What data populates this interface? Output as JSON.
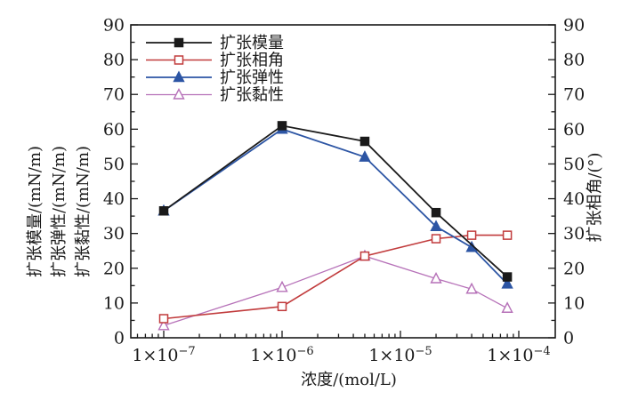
{
  "figure": {
    "background": "#ffffff",
    "ink_color": "#1a1a1a"
  },
  "chart_data": {
    "type": "line",
    "title": "",
    "x_axis": {
      "title": "浓度/(mol/L)",
      "scale": "log",
      "range": [
        5.5e-08,
        0.0002
      ],
      "ticks": [
        {
          "value": 1e-07,
          "label": "1×10⁻⁷",
          "base": "1×10",
          "exp": "−7"
        },
        {
          "value": 1e-06,
          "label": "1×10⁻⁶",
          "base": "1×10",
          "exp": "−6"
        },
        {
          "value": 1e-05,
          "label": "1×10⁻⁵",
          "base": "1×10",
          "exp": "−5"
        },
        {
          "value": 0.0001,
          "label": "1×10⁻⁴",
          "base": "1×10",
          "exp": "−4"
        }
      ]
    },
    "y_axis_left": {
      "titles": [
        "扩张模量/(mN/m)",
        "扩张弹性/(mN/m)",
        "扩张黏性/(mN/m)"
      ],
      "min": 0,
      "max": 90,
      "major_step": 10,
      "minor_step": 5,
      "tick_labels": [
        "0",
        "10",
        "20",
        "30",
        "40",
        "50",
        "60",
        "70",
        "80",
        "90"
      ]
    },
    "y_axis_right": {
      "title": "扩张相角/(°)",
      "min": 0,
      "max": 90,
      "major_step": 10,
      "minor_step": 5,
      "tick_labels": [
        "0",
        "10",
        "20",
        "30",
        "40",
        "50",
        "60",
        "70",
        "80",
        "90"
      ]
    },
    "legend": {
      "position": "top-left-inside",
      "entries": [
        "扩张模量",
        "扩张相角",
        "扩张弹性",
        "扩张黏性"
      ]
    },
    "series": [
      {
        "name": "扩张模量",
        "axis": "left",
        "color": "#1a1a1a",
        "marker": "square-filled",
        "line_width": 1.8,
        "x": [
          1e-07,
          1e-06,
          5e-06,
          2e-05,
          8e-05
        ],
        "y": [
          36.5,
          61,
          56.5,
          36,
          17.5
        ]
      },
      {
        "name": "扩张相角",
        "axis": "right",
        "color": "#c13b3c",
        "marker": "square-open",
        "line_width": 1.6,
        "x": [
          1e-07,
          1e-06,
          5e-06,
          2e-05,
          4e-05,
          8e-05
        ],
        "y": [
          5.5,
          9,
          23.5,
          28.5,
          29.5,
          29.5
        ]
      },
      {
        "name": "扩张弹性",
        "axis": "left",
        "color": "#2c55a4",
        "marker": "triangle-filled",
        "line_width": 1.8,
        "x": [
          1e-07,
          1e-06,
          5e-06,
          2e-05,
          4e-05,
          8e-05
        ],
        "y": [
          36.5,
          60,
          52,
          32,
          26,
          15.5
        ]
      },
      {
        "name": "扩张黏性",
        "axis": "left",
        "color": "#b671b8",
        "marker": "triangle-open",
        "line_width": 1.3,
        "x": [
          1e-07,
          1e-06,
          5e-06,
          2e-05,
          4e-05,
          8e-05
        ],
        "y": [
          3.5,
          14.5,
          23.5,
          17,
          14,
          8.5
        ]
      }
    ]
  }
}
